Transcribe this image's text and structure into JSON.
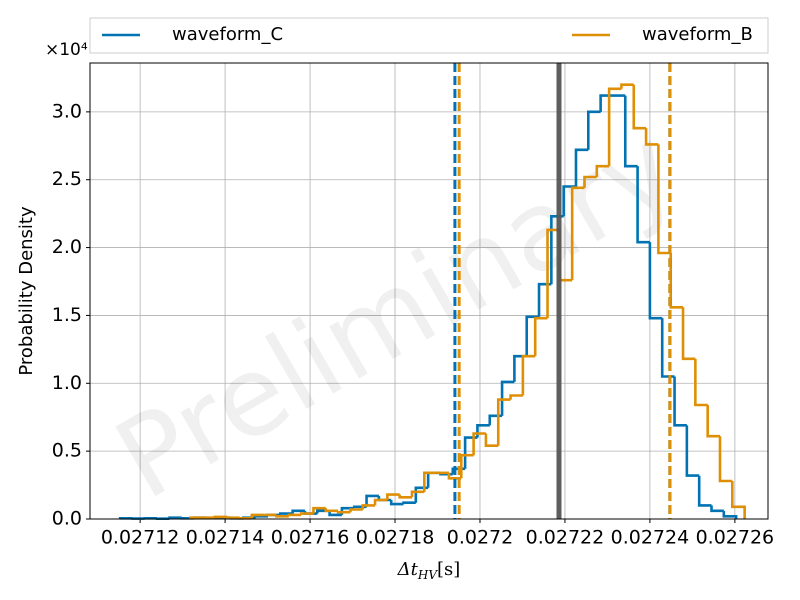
{
  "chart_data": {
    "type": "histogram",
    "ylabel": "Probability Density",
    "xlabel": [
      "Δt",
      "HV",
      "[s]"
    ],
    "y_offset_label": "×10⁴",
    "watermark": "Preliminary",
    "xlim": [
      0.0271082,
      0.0272678
    ],
    "ylim": [
      0,
      3.36
    ],
    "xticks": [
      0.02712,
      0.02714,
      0.02716,
      0.02718,
      0.0272,
      0.02722,
      0.02724,
      0.02726
    ],
    "yticks": [
      {
        "value": 0,
        "label": "0.0"
      },
      0.5,
      {
        "value": 1,
        "label": "1.0"
      },
      1.5,
      {
        "value": 2,
        "label": "2.0"
      },
      2.5,
      {
        "value": 3,
        "label": "3.0"
      }
    ],
    "grid": true,
    "legend": "top",
    "series": [
      {
        "name": "waveform_C",
        "color": "#0173b2",
        "bins": [
          0.0271153,
          0.0271182,
          0.0271211,
          0.027124,
          0.0271269,
          0.0271298,
          0.0271327,
          0.0271356,
          0.0271385,
          0.0271414,
          0.0271443,
          0.0271472,
          0.0271501,
          0.027153,
          0.0271559,
          0.0271588,
          0.0271617,
          0.0271646,
          0.0271675,
          0.0271704,
          0.0271733,
          0.0271762,
          0.0271791,
          0.027182,
          0.0271849,
          0.0271878,
          0.0271907,
          0.0271936,
          0.0271965,
          0.0271994,
          0.0272023,
          0.0272052,
          0.0272081,
          0.027211,
          0.0272139,
          0.0272168,
          0.0272197,
          0.0272226,
          0.0272255,
          0.0272284,
          0.0272313,
          0.0272342,
          0.0272371,
          0.02724,
          0.0272429,
          0.0272458,
          0.0272487,
          0.0272516,
          0.0272545,
          0.0272574,
          0.0272603
        ],
        "values": [
          0.005,
          0.003,
          0.005,
          0.002,
          0.01,
          0.005,
          0.01,
          0.008,
          0.01,
          0.005,
          0.01,
          0.02,
          0.03,
          0.04,
          0.06,
          0.04,
          0.06,
          0.03,
          0.08,
          0.09,
          0.17,
          0.14,
          0.11,
          0.12,
          0.23,
          0.34,
          0.33,
          0.37,
          0.6,
          0.69,
          0.76,
          1.01,
          1.2,
          1.49,
          1.73,
          2.23,
          2.45,
          2.72,
          3.0,
          3.12,
          3.12,
          2.6,
          2.04,
          1.48,
          1.05,
          0.69,
          0.32,
          0.1,
          0.06,
          0.02
        ]
      },
      {
        "name": "waveform_B",
        "color": "#de8f05",
        "bins": [
          0.0271318,
          0.0271347,
          0.0271376,
          0.0271405,
          0.0271434,
          0.0271463,
          0.0271492,
          0.0271521,
          0.027155,
          0.0271579,
          0.0271608,
          0.0271637,
          0.0271666,
          0.0271695,
          0.0271724,
          0.0271753,
          0.0271782,
          0.0271811,
          0.027184,
          0.0271869,
          0.0271898,
          0.0271927,
          0.0271956,
          0.0271985,
          0.0272014,
          0.0272043,
          0.0272072,
          0.0272101,
          0.027213,
          0.0272159,
          0.0272188,
          0.0272217,
          0.0272246,
          0.0272275,
          0.0272304,
          0.0272333,
          0.0272362,
          0.0272391,
          0.027242,
          0.0272449,
          0.0272478,
          0.0272507,
          0.0272536,
          0.0272565,
          0.0272594,
          0.0272623
        ],
        "values": [
          0.01,
          0.01,
          0.015,
          0.01,
          0.005,
          0.03,
          0.03,
          0.02,
          0.03,
          0.04,
          0.08,
          0.06,
          0.05,
          0.07,
          0.1,
          0.14,
          0.18,
          0.16,
          0.2,
          0.34,
          0.34,
          0.3,
          0.47,
          0.63,
          0.54,
          0.88,
          0.91,
          1.2,
          1.48,
          2.13,
          1.76,
          2.44,
          2.52,
          2.6,
          3.17,
          3.2,
          2.88,
          2.76,
          1.96,
          1.56,
          1.18,
          0.84,
          0.61,
          0.28,
          0.09
        ]
      }
    ],
    "vlines": [
      {
        "value": 0.0272186,
        "color": "#555555",
        "style": "solid"
      },
      {
        "value": 0.0271941,
        "color": "#0173b2",
        "style": "dashed"
      },
      {
        "value": 0.0272447,
        "color": "#0173b2",
        "style": "dashed"
      },
      {
        "value": 0.0271951,
        "color": "#de8f05",
        "style": "dashed"
      },
      {
        "value": 0.0272447,
        "color": "#de8f05",
        "style": "dashed"
      }
    ]
  }
}
